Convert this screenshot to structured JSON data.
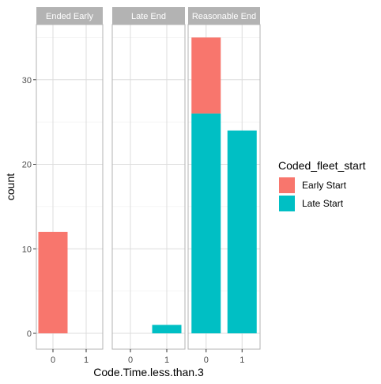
{
  "chart_data": {
    "type": "bar",
    "stacked": true,
    "facet_by": "Coded_end",
    "facets": [
      "Ended Early",
      "Late End",
      "Reasonable End"
    ],
    "categories": [
      "0",
      "1"
    ],
    "xlabel": "Code.Time.less.than.3",
    "ylabel": "count",
    "ylim": [
      0,
      36
    ],
    "yticks": [
      0,
      10,
      20,
      30
    ],
    "legend_title": "Coded_fleet_start",
    "legend_position": "right",
    "grid": true,
    "series": [
      {
        "name": "Early Start",
        "color": "#F8766D",
        "values": {
          "Ended Early": [
            12,
            0
          ],
          "Late End": [
            0,
            0
          ],
          "Reasonable End": [
            9,
            0
          ]
        }
      },
      {
        "name": "Late Start",
        "color": "#00BFC4",
        "values": {
          "Ended Early": [
            0,
            0
          ],
          "Late End": [
            0,
            1
          ],
          "Reasonable End": [
            26,
            24
          ]
        }
      }
    ]
  }
}
